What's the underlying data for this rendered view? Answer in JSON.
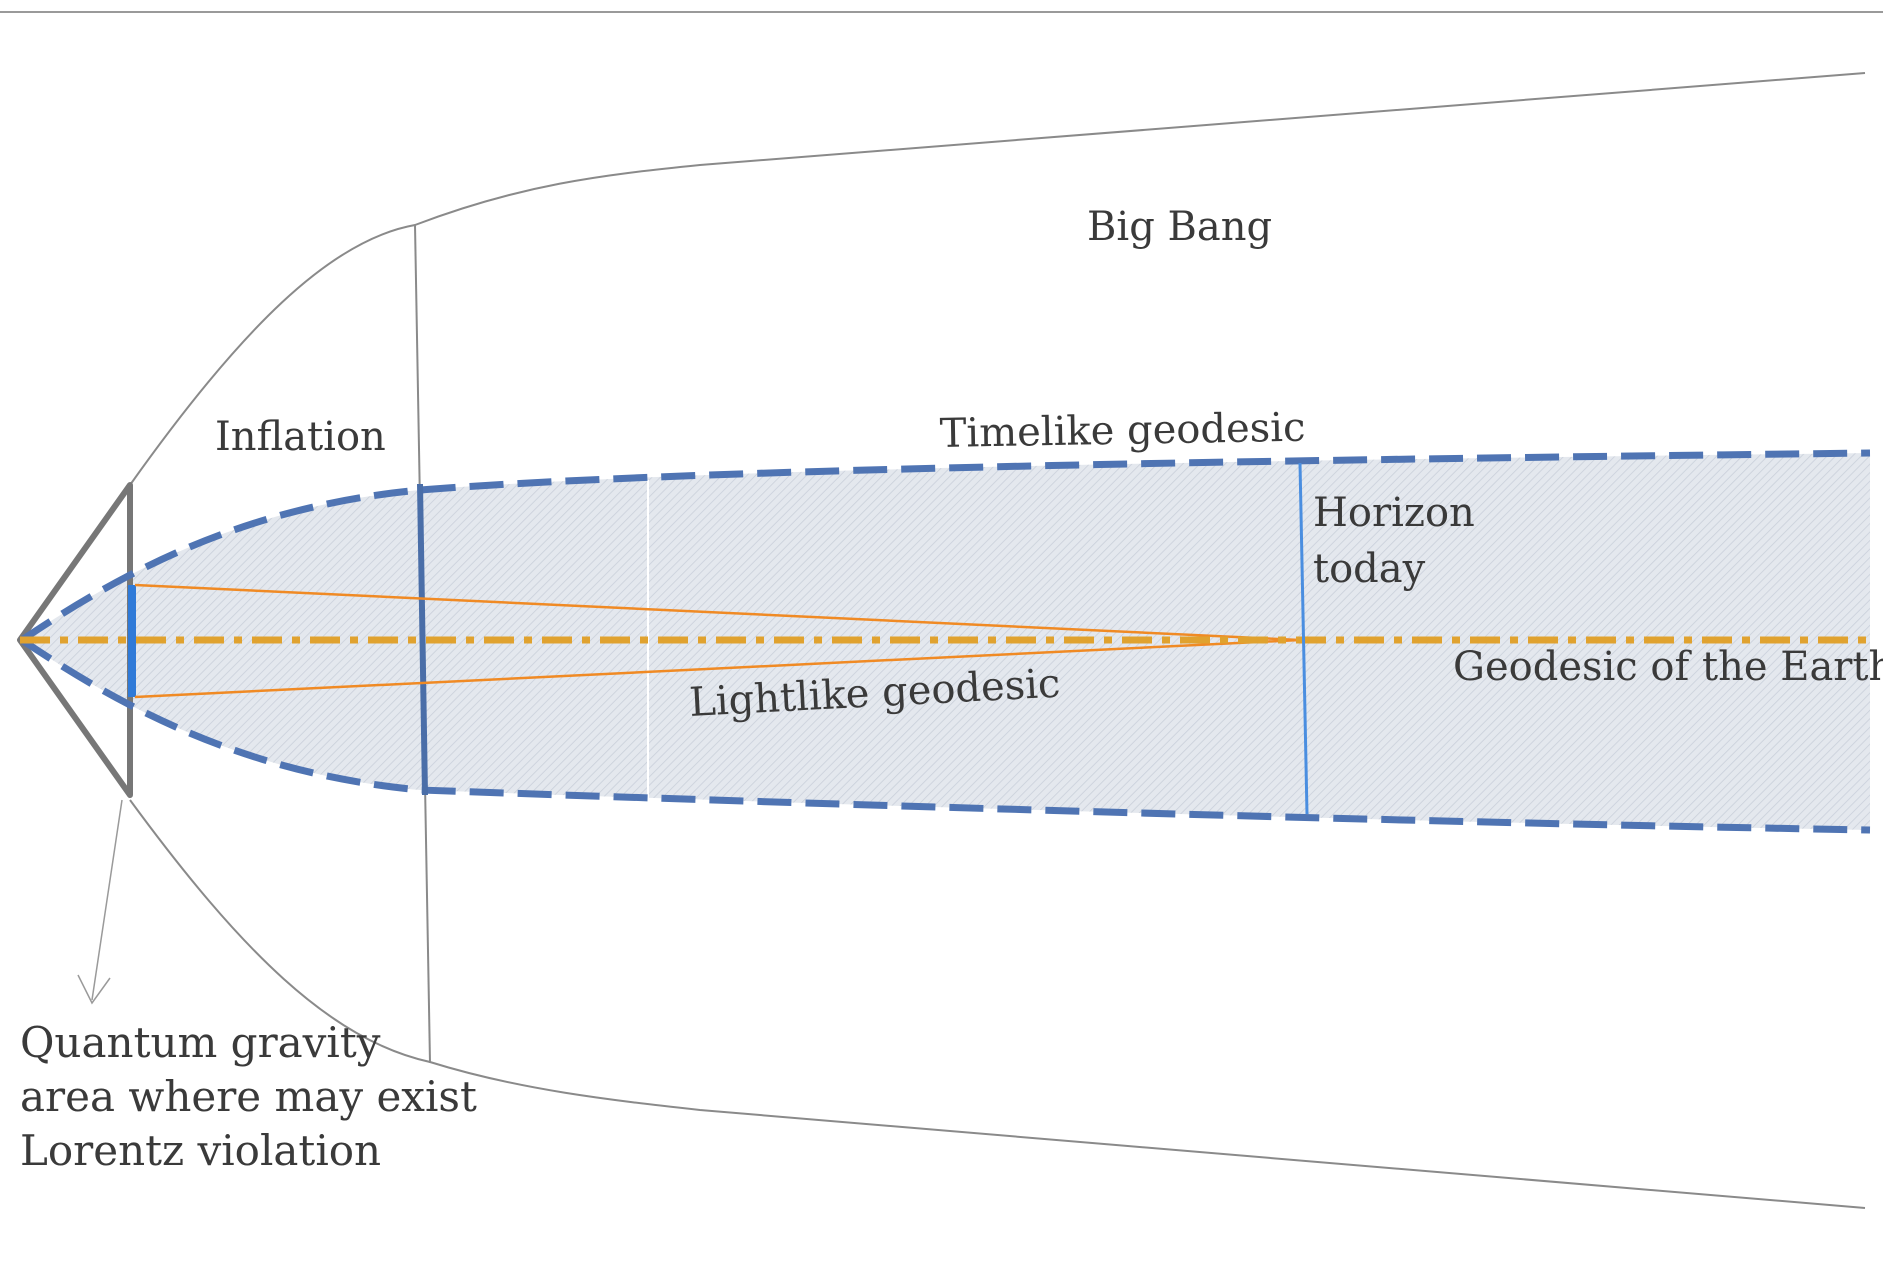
{
  "labels": {
    "big_bang": "Big Bang",
    "inflation": "Inflation",
    "timelike": "Timelike geodesic",
    "horizon_line1": "Horizon",
    "horizon_line2": "today",
    "earth_geodesic": "Geodesic of the Earth",
    "lightlike": "Lightlike geodesic",
    "qg_line1": "Quantum gravity",
    "qg_line2": "area where may exist",
    "qg_line3": "Lorentz violation"
  },
  "colors": {
    "outline": "#8a8a8a",
    "cone": "#777777",
    "geodesic_blue": "#4f74b3",
    "horizon_blue": "#4a8ee0",
    "earth_orange": "#e0a22f",
    "light_orange": "#f08a24",
    "band_fill": "#dde2ea"
  }
}
